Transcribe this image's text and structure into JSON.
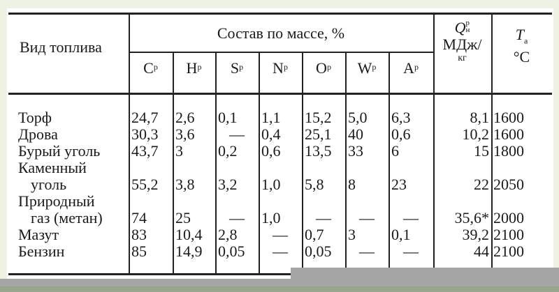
{
  "table": {
    "header": {
      "fuel_type": "Вид топлива",
      "composition": "Состав по массе, %",
      "elements": [
        {
          "letter": "C",
          "sup": "р"
        },
        {
          "letter": "H",
          "sup": "р"
        },
        {
          "letter": "S",
          "sup": "р"
        },
        {
          "letter": "N",
          "sup": "р"
        },
        {
          "letter": "O",
          "sup": "р"
        },
        {
          "letter": "W",
          "sup": "р"
        },
        {
          "letter": "A",
          "sup": "р"
        }
      ],
      "heat": {
        "symbol": "Q",
        "sup": "р",
        "sub": "н",
        "unit_line1": "МДж/",
        "unit_line2": "кг"
      },
      "temp": {
        "symbol": "T",
        "sub": "а",
        "unit": "°C"
      }
    },
    "rows": [
      {
        "name": [
          "Торф"
        ],
        "values": [
          "24,7",
          "2,6",
          "0,1",
          "1,1",
          "15,2",
          "5,0",
          "6,3",
          "8,1",
          "1600"
        ]
      },
      {
        "name": [
          "Дрова"
        ],
        "values": [
          "30,3",
          "3,6",
          "—",
          "0,4",
          "25,1",
          "40",
          "0,6",
          "10,2",
          "1600"
        ]
      },
      {
        "name": [
          "Бурый уголь"
        ],
        "values": [
          "43,7",
          "3",
          "0,2",
          "0,6",
          "13,5",
          "33",
          "6",
          "15",
          "1800"
        ]
      },
      {
        "name": [
          "Каменный",
          "уголь"
        ],
        "values": [
          "55,2",
          "3,8",
          "3,2",
          "1,0",
          "5,8",
          "8",
          "23",
          "22",
          "2050"
        ]
      },
      {
        "name": [
          "Природный",
          "газ (метан)"
        ],
        "values": [
          "74",
          "25",
          "—",
          "1,0",
          "—",
          "—",
          "—",
          "35,6*",
          "2000"
        ]
      },
      {
        "name": [
          "Мазут"
        ],
        "values": [
          "83",
          "10,4",
          "2,8",
          "—",
          "0,7",
          "3",
          "0,1",
          "39,2",
          "2100"
        ]
      },
      {
        "name": [
          "Бензин"
        ],
        "values": [
          "85",
          "14,9",
          "0,05",
          "—",
          "0,05",
          "—",
          "—",
          "44",
          "2100"
        ]
      }
    ]
  }
}
